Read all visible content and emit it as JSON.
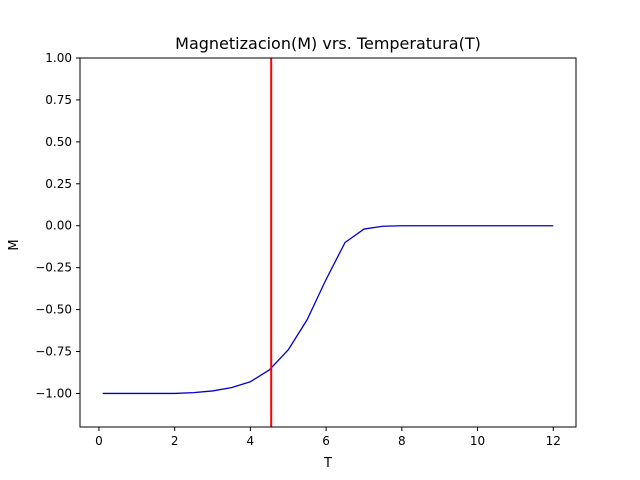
{
  "chart_data": {
    "type": "line",
    "title": "Magnetizacion(M) vrs. Temperatura(T)",
    "xlabel": "T",
    "ylabel": "M",
    "xlim": [
      -0.5,
      12.6
    ],
    "ylim": [
      -1.2,
      1.0
    ],
    "xticks": [
      0,
      2,
      4,
      6,
      8,
      10,
      12
    ],
    "yticks": [
      -1.0,
      -0.75,
      -0.5,
      -0.25,
      0.0,
      0.25,
      0.5,
      0.75,
      1.0
    ],
    "xtick_labels": [
      "0",
      "2",
      "4",
      "6",
      "8",
      "10",
      "12"
    ],
    "ytick_labels": [
      "−1.00",
      "−0.75",
      "−0.50",
      "−0.25",
      "0.00",
      "0.25",
      "0.50",
      "0.75",
      "1.00"
    ],
    "grid": false,
    "series": [
      {
        "color": "#0000cc",
        "x": [
          0.1,
          1.0,
          2.0,
          2.5,
          3.0,
          3.5,
          4.0,
          4.5,
          5.0,
          5.5,
          6.0,
          6.5,
          7.0,
          7.5,
          8.0,
          9.0,
          10.0,
          11.0,
          12.0
        ],
        "y": [
          -1.0,
          -1.0,
          -1.0,
          -0.995,
          -0.985,
          -0.965,
          -0.93,
          -0.86,
          -0.74,
          -0.56,
          -0.32,
          -0.1,
          -0.02,
          -0.003,
          0.0,
          0.0,
          0.0,
          0.0,
          0.0
        ]
      }
    ],
    "vline": {
      "x": 4.55,
      "color": "#ff0000"
    }
  }
}
